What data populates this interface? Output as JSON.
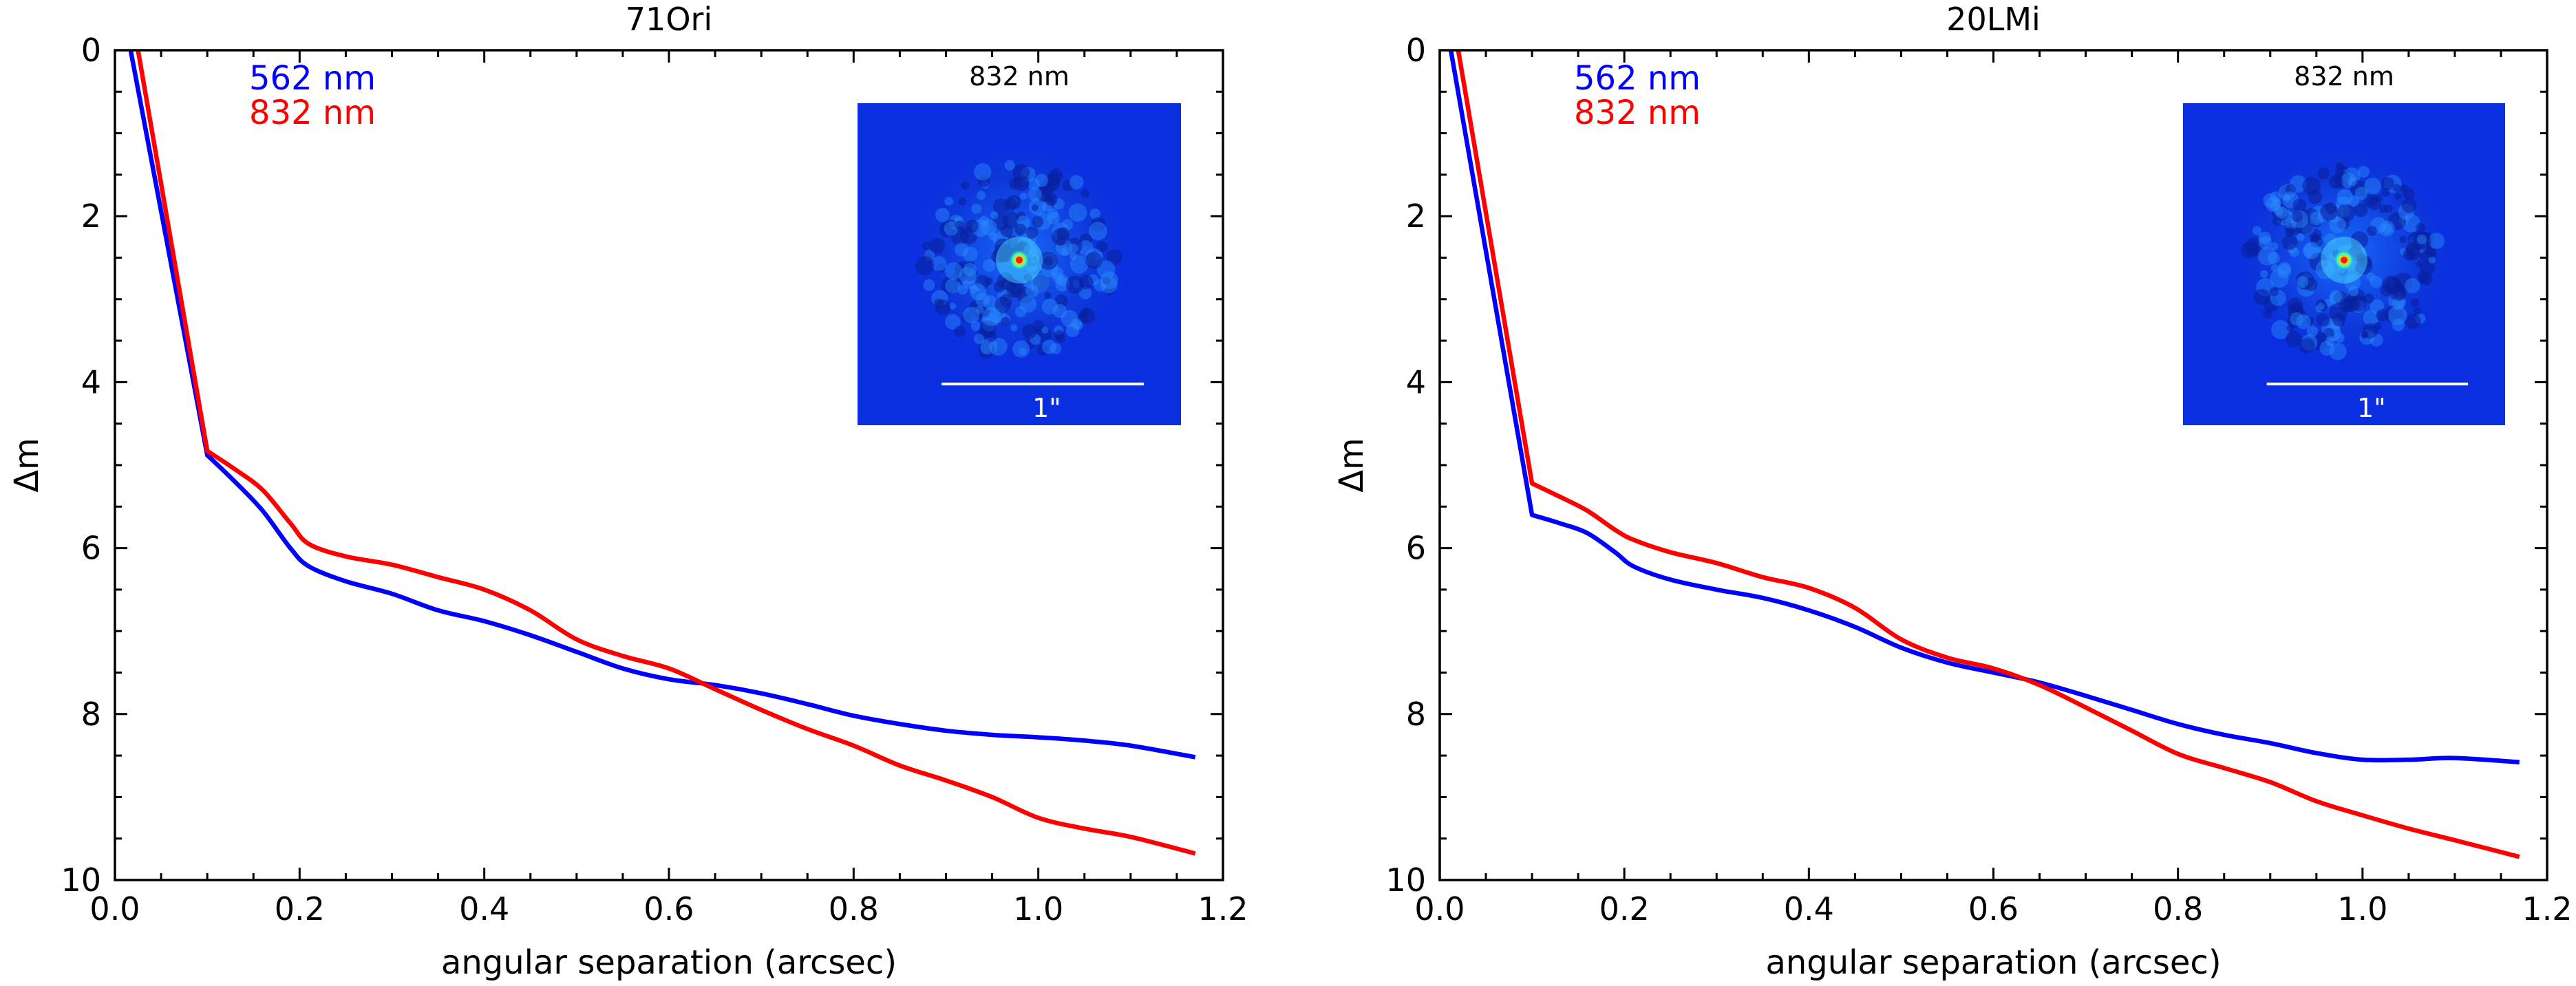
{
  "chart_data": [
    {
      "type": "line",
      "title": "71Ori",
      "xlabel": "angular separation (arcsec)",
      "ylabel": "Δm",
      "xlim": [
        0.0,
        1.2
      ],
      "ylim": [
        10,
        0
      ],
      "y_inverted": true,
      "xticks": [
        "0.0",
        "0.2",
        "0.4",
        "0.6",
        "0.8",
        "1.0",
        "1.2"
      ],
      "yticks": [
        "0",
        "2",
        "4",
        "6",
        "8",
        "10"
      ],
      "legend_position": "top-left",
      "series": [
        {
          "name": "562 nm",
          "color": "#0000ff",
          "x": [
            0.017,
            0.1,
            0.13,
            0.16,
            0.19,
            0.21,
            0.25,
            0.3,
            0.35,
            0.4,
            0.45,
            0.5,
            0.55,
            0.6,
            0.65,
            0.7,
            0.75,
            0.8,
            0.85,
            0.9,
            0.95,
            1.0,
            1.05,
            1.1,
            1.17
          ],
          "values": [
            0.0,
            4.88,
            5.2,
            5.55,
            6.0,
            6.22,
            6.4,
            6.55,
            6.75,
            6.88,
            7.05,
            7.25,
            7.45,
            7.58,
            7.65,
            7.75,
            7.88,
            8.02,
            8.12,
            8.2,
            8.25,
            8.28,
            8.32,
            8.38,
            8.52
          ]
        },
        {
          "name": "832 nm",
          "color": "#ff0000",
          "x": [
            0.025,
            0.1,
            0.13,
            0.16,
            0.19,
            0.21,
            0.25,
            0.3,
            0.35,
            0.4,
            0.45,
            0.5,
            0.55,
            0.6,
            0.65,
            0.7,
            0.75,
            0.8,
            0.85,
            0.9,
            0.95,
            1.0,
            1.05,
            1.1,
            1.17
          ],
          "values": [
            0.0,
            4.83,
            5.05,
            5.3,
            5.7,
            5.95,
            6.1,
            6.2,
            6.35,
            6.5,
            6.75,
            7.1,
            7.3,
            7.45,
            7.7,
            7.95,
            8.18,
            8.38,
            8.62,
            8.8,
            9.0,
            9.25,
            9.38,
            9.48,
            9.68
          ]
        }
      ],
      "inset": {
        "label": "832 nm",
        "scale_label": "1\""
      }
    },
    {
      "type": "line",
      "title": "20LMi",
      "xlabel": "angular separation (arcsec)",
      "ylabel": "Δm",
      "xlim": [
        0.0,
        1.2
      ],
      "ylim": [
        10,
        0
      ],
      "y_inverted": true,
      "xticks": [
        "0.0",
        "0.2",
        "0.4",
        "0.6",
        "0.8",
        "1.0",
        "1.2"
      ],
      "yticks": [
        "0",
        "2",
        "4",
        "6",
        "8",
        "10"
      ],
      "legend_position": "top-left",
      "series": [
        {
          "name": "562 nm",
          "color": "#0000ff",
          "x": [
            0.012,
            0.1,
            0.13,
            0.16,
            0.19,
            0.21,
            0.25,
            0.3,
            0.35,
            0.4,
            0.45,
            0.5,
            0.55,
            0.6,
            0.65,
            0.7,
            0.75,
            0.8,
            0.85,
            0.9,
            0.95,
            1.0,
            1.05,
            1.1,
            1.17
          ],
          "values": [
            0.0,
            5.6,
            5.7,
            5.82,
            6.05,
            6.22,
            6.38,
            6.5,
            6.6,
            6.75,
            6.95,
            7.2,
            7.38,
            7.5,
            7.62,
            7.78,
            7.95,
            8.12,
            8.25,
            8.35,
            8.47,
            8.55,
            8.55,
            8.53,
            8.58
          ]
        },
        {
          "name": "832 nm",
          "color": "#ff0000",
          "x": [
            0.02,
            0.1,
            0.13,
            0.16,
            0.19,
            0.21,
            0.25,
            0.3,
            0.35,
            0.4,
            0.45,
            0.5,
            0.55,
            0.6,
            0.65,
            0.7,
            0.75,
            0.8,
            0.85,
            0.9,
            0.95,
            1.0,
            1.05,
            1.1,
            1.17
          ],
          "values": [
            0.0,
            5.22,
            5.38,
            5.55,
            5.78,
            5.9,
            6.05,
            6.18,
            6.35,
            6.48,
            6.72,
            7.1,
            7.32,
            7.45,
            7.65,
            7.92,
            8.2,
            8.48,
            8.65,
            8.82,
            9.05,
            9.22,
            9.38,
            9.52,
            9.72
          ]
        }
      ],
      "inset": {
        "label": "832 nm",
        "scale_label": "1\""
      }
    }
  ]
}
